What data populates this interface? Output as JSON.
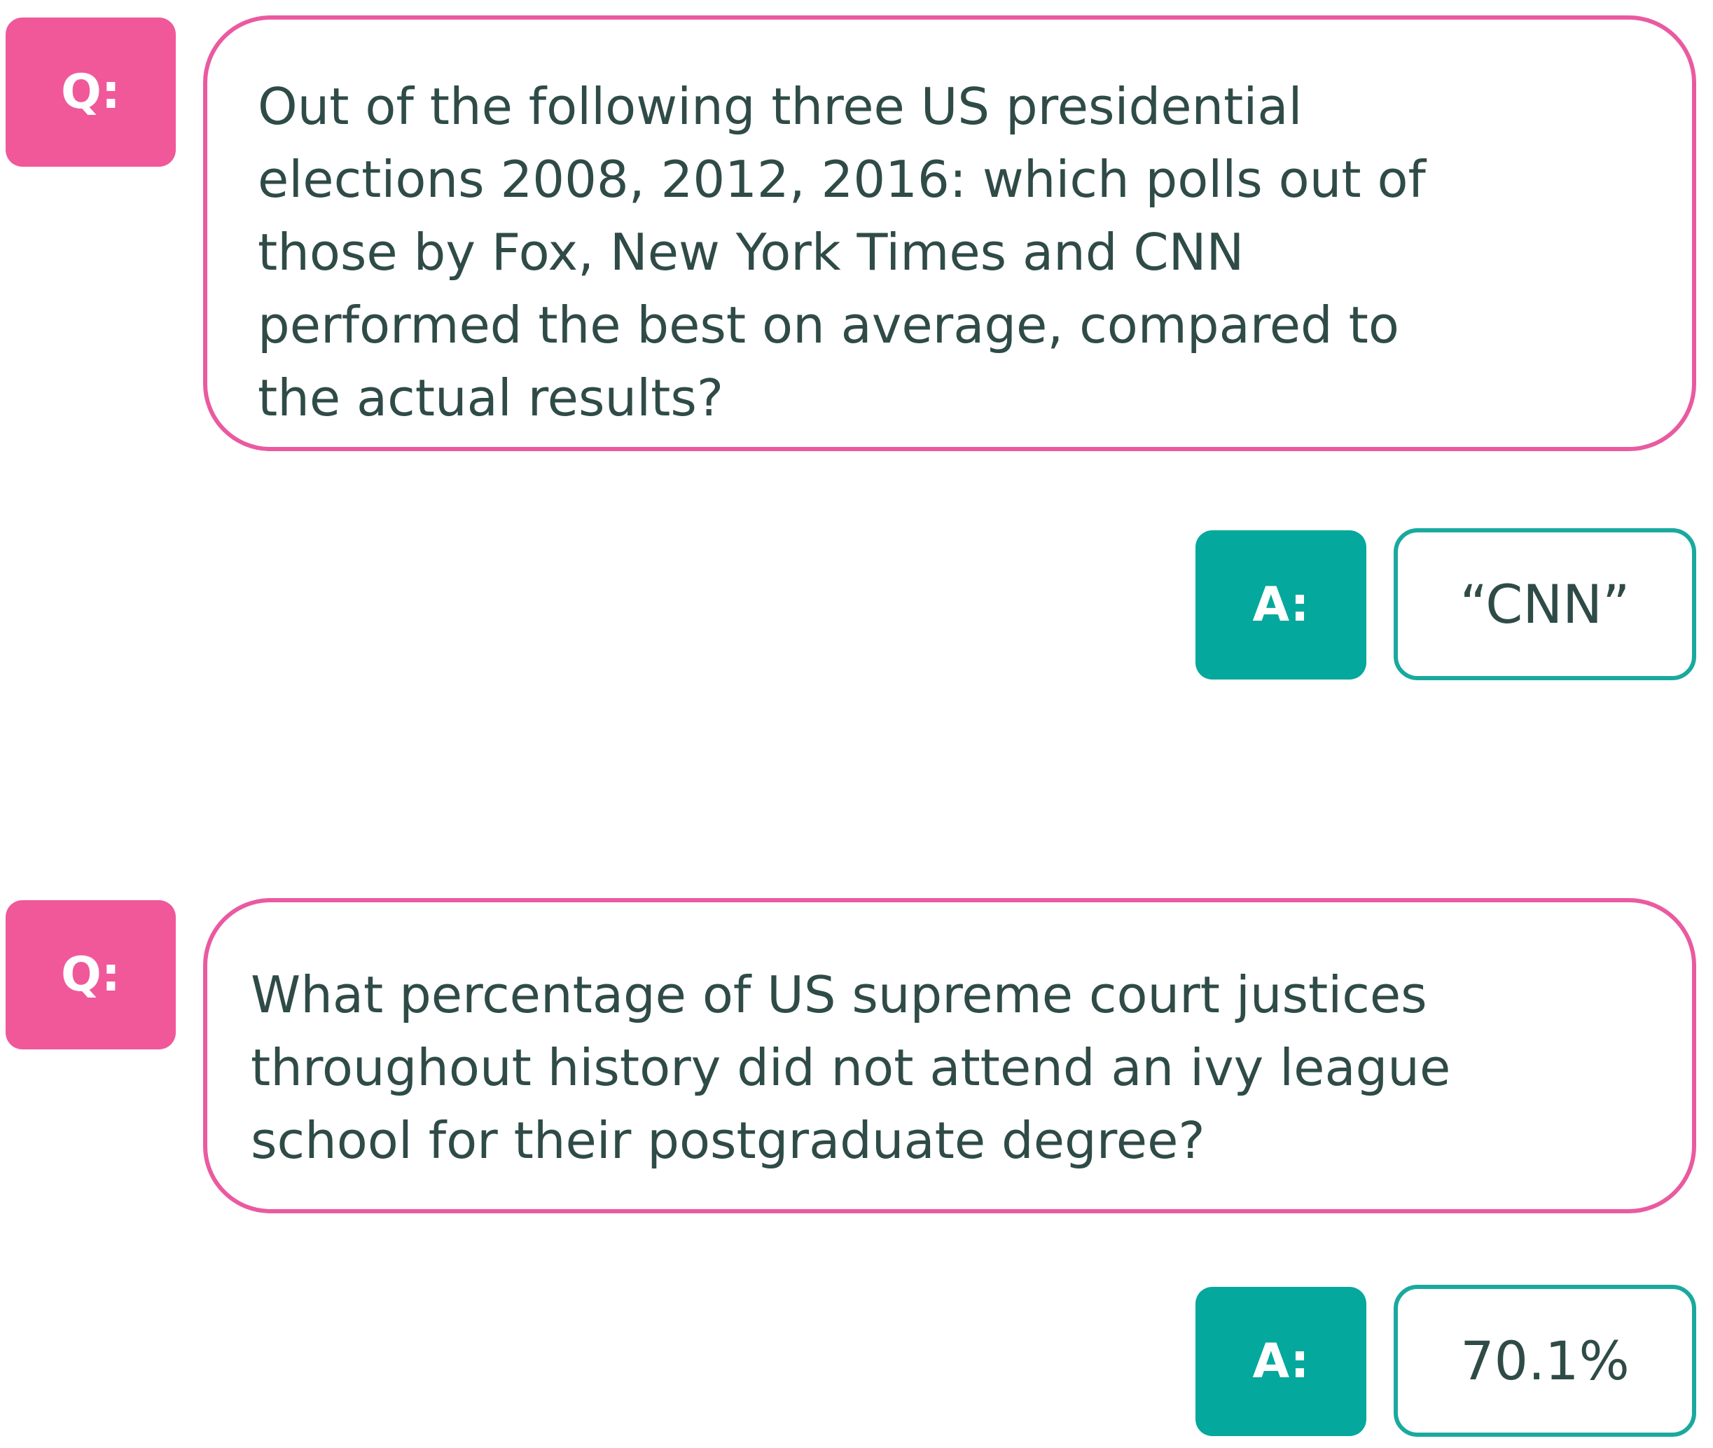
{
  "colors": {
    "question_accent": "#f0589a",
    "answer_accent": "#05a89c",
    "text": "#2f4b47"
  },
  "qa": [
    {
      "q_label": "Q:",
      "question_lines": [
        "Out of the following three US presidential",
        "elections 2008, 2012, 2016: which polls out of",
        "those by Fox, New York Times and CNN",
        "performed the best on average, compared to",
        "the actual results?"
      ],
      "a_label": "A:",
      "answer": "“CNN”"
    },
    {
      "q_label": "Q:",
      "question_lines": [
        "What percentage of US supreme court justices",
        "throughout history did not attend an ivy league",
        "school for their postgraduate degree?"
      ],
      "a_label": "A:",
      "answer": "70.1%"
    }
  ]
}
